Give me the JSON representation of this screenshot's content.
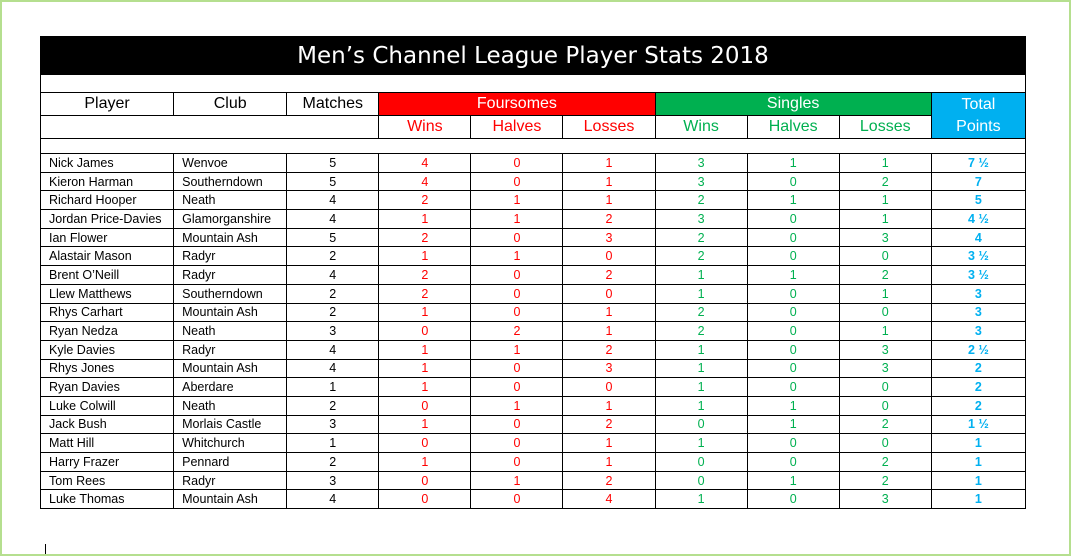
{
  "title": "Men’s Channel League Player Stats 2018",
  "headers": {
    "player": "Player",
    "club": "Club",
    "matches": "Matches",
    "foursomes": "Foursomes",
    "singles": "Singles",
    "total_line1": "Total",
    "total_line2": "Points",
    "wins": "Wins",
    "halves": "Halves",
    "losses": "Losses"
  },
  "colors": {
    "foursomes": "#ff0000",
    "singles": "#00b050",
    "total": "#00b0f0",
    "title_bg": "#000000",
    "frame": "#b5df8f"
  },
  "columns": [
    "player",
    "club",
    "matches",
    "fw",
    "fh",
    "fl",
    "sw",
    "sh",
    "sl",
    "pts"
  ],
  "rows": [
    {
      "player": "Nick James",
      "club": "Wenvoe",
      "matches": "5",
      "fw": "4",
      "fh": "0",
      "fl": "1",
      "sw": "3",
      "sh": "1",
      "sl": "1",
      "pts": "7 ½"
    },
    {
      "player": "Kieron Harman",
      "club": "Southerndown",
      "matches": "5",
      "fw": "4",
      "fh": "0",
      "fl": "1",
      "sw": "3",
      "sh": "0",
      "sl": "2",
      "pts": "7"
    },
    {
      "player": "Richard Hooper",
      "club": "Neath",
      "matches": "4",
      "fw": "2",
      "fh": "1",
      "fl": "1",
      "sw": "2",
      "sh": "1",
      "sl": "1",
      "pts": "5"
    },
    {
      "player": "Jordan Price-Davies",
      "club": "Glamorganshire",
      "matches": "4",
      "fw": "1",
      "fh": "1",
      "fl": "2",
      "sw": "3",
      "sh": "0",
      "sl": "1",
      "pts": "4 ½"
    },
    {
      "player": "Ian Flower",
      "club": "Mountain Ash",
      "matches": "5",
      "fw": "2",
      "fh": "0",
      "fl": "3",
      "sw": "2",
      "sh": "0",
      "sl": "3",
      "pts": "4"
    },
    {
      "player": "Alastair Mason",
      "club": "Radyr",
      "matches": "2",
      "fw": "1",
      "fh": "1",
      "fl": "0",
      "sw": "2",
      "sh": "0",
      "sl": "0",
      "pts": "3 ½"
    },
    {
      "player": "Brent O’Neill",
      "club": "Radyr",
      "matches": "4",
      "fw": "2",
      "fh": "0",
      "fl": "2",
      "sw": "1",
      "sh": "1",
      "sl": "2",
      "pts": "3 ½"
    },
    {
      "player": "Llew Matthews",
      "club": "Southerndown",
      "matches": "2",
      "fw": "2",
      "fh": "0",
      "fl": "0",
      "sw": "1",
      "sh": "0",
      "sl": "1",
      "pts": "3"
    },
    {
      "player": "Rhys Carhart",
      "club": "Mountain Ash",
      "matches": "2",
      "fw": "1",
      "fh": "0",
      "fl": "1",
      "sw": "2",
      "sh": "0",
      "sl": "0",
      "pts": "3"
    },
    {
      "player": "Ryan Nedza",
      "club": "Neath",
      "matches": "3",
      "fw": "0",
      "fh": "2",
      "fl": "1",
      "sw": "2",
      "sh": "0",
      "sl": "1",
      "pts": "3"
    },
    {
      "player": "Kyle Davies",
      "club": "Radyr",
      "matches": "4",
      "fw": "1",
      "fh": "1",
      "fl": "2",
      "sw": "1",
      "sh": "0",
      "sl": "3",
      "pts": "2 ½"
    },
    {
      "player": "Rhys Jones",
      "club": "Mountain Ash",
      "matches": "4",
      "fw": "1",
      "fh": "0",
      "fl": "3",
      "sw": "1",
      "sh": "0",
      "sl": "3",
      "pts": "2"
    },
    {
      "player": "Ryan Davies",
      "club": "Aberdare",
      "matches": "1",
      "fw": "1",
      "fh": "0",
      "fl": "0",
      "sw": "1",
      "sh": "0",
      "sl": "0",
      "pts": "2"
    },
    {
      "player": "Luke Colwill",
      "club": "Neath",
      "matches": "2",
      "fw": "0",
      "fh": "1",
      "fl": "1",
      "sw": "1",
      "sh": "1",
      "sl": "0",
      "pts": "2"
    },
    {
      "player": "Jack Bush",
      "club": "Morlais Castle",
      "matches": "3",
      "fw": "1",
      "fh": "0",
      "fl": "2",
      "sw": "0",
      "sh": "1",
      "sl": "2",
      "pts": "1 ½"
    },
    {
      "player": "Matt Hill",
      "club": "Whitchurch",
      "matches": "1",
      "fw": "0",
      "fh": "0",
      "fl": "1",
      "sw": "1",
      "sh": "0",
      "sl": "0",
      "pts": "1"
    },
    {
      "player": "Harry Frazer",
      "club": "Pennard",
      "matches": "2",
      "fw": "1",
      "fh": "0",
      "fl": "1",
      "sw": "0",
      "sh": "0",
      "sl": "2",
      "pts": "1"
    },
    {
      "player": "Tom Rees",
      "club": "Radyr",
      "matches": "3",
      "fw": "0",
      "fh": "1",
      "fl": "2",
      "sw": "0",
      "sh": "1",
      "sl": "2",
      "pts": "1"
    },
    {
      "player": "Luke Thomas",
      "club": "Mountain Ash",
      "matches": "4",
      "fw": "0",
      "fh": "0",
      "fl": "4",
      "sw": "1",
      "sh": "0",
      "sl": "3",
      "pts": "1"
    }
  ]
}
